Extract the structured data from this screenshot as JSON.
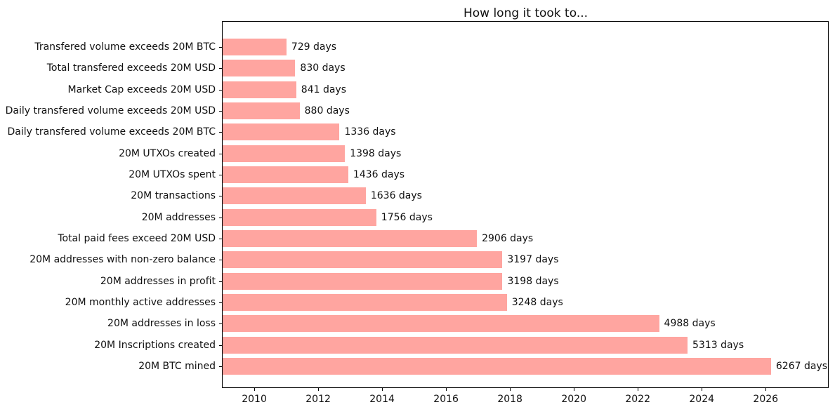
{
  "chart_data": {
    "type": "bar",
    "orientation": "horizontal",
    "title": "How long it took to...",
    "categories": [
      "Transfered volume exceeds 20M BTC",
      "Total transfered exceeds 20M USD",
      "Market Cap exceeds 20M USD",
      "Daily transfered volume exceeds 20M USD",
      "Daily transfered volume exceeds 20M BTC",
      "20M UTXOs created",
      "20M UTXOs spent",
      "20M transactions",
      "20M addresses",
      "Total paid fees exceed 20M USD",
      "20M addresses with non-zero balance",
      "20M addresses in profit",
      "20M monthly active addresses",
      "20M addresses in loss",
      "20M Inscriptions created",
      "20M BTC mined"
    ],
    "values": [
      729,
      830,
      841,
      880,
      1336,
      1398,
      1436,
      1636,
      1756,
      2906,
      3197,
      3198,
      3248,
      4988,
      5313,
      6267
    ],
    "bar_labels": [
      "729 days",
      "830 days",
      "841 days",
      "880 days",
      "1336 days",
      "1398 days",
      "1436 days",
      "1636 days",
      "1756 days",
      "2906 days",
      "3197 days",
      "3198 days",
      "3248 days",
      "4988 days",
      "5313 days",
      "6267 days"
    ],
    "value_unit": "days",
    "x_tick_labels": [
      "2010",
      "2012",
      "2014",
      "2016",
      "2018",
      "2020",
      "2022",
      "2024",
      "2026"
    ],
    "x_axis": {
      "min_year": 2009.01,
      "max_year": 2027.95,
      "days_per_year": 365.25
    },
    "grid": false,
    "legend": false,
    "colors": {
      "bar": "#ffa5a0",
      "text": "#111111",
      "spine": "#000000"
    }
  }
}
